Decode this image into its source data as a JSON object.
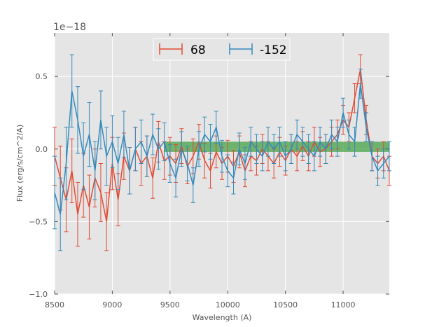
{
  "chart_data": {
    "type": "line",
    "title": "",
    "xlabel": "Wavelength (A)",
    "ylabel": "Flux (erg/s/cm^2/A)",
    "offset_label": "1e−18",
    "scale": 1e-18,
    "xlim": [
      8500,
      11400
    ],
    "ylim": [
      -1.0,
      0.8
    ],
    "grid": true,
    "legend_position": "top-center",
    "xticks": [
      8500,
      9000,
      9500,
      10000,
      10500,
      11000
    ],
    "xtick_labels": [
      "8500",
      "9000",
      "9500",
      "10000",
      "10500",
      "11000"
    ],
    "yticks": [
      -1.0,
      -0.5,
      0.0,
      0.5
    ],
    "ytick_labels": [
      "−1.0",
      "−0.5",
      "0.0",
      "0.5"
    ],
    "band": {
      "x0": 9450,
      "x1": 11400,
      "y0": -0.02,
      "y1": 0.05,
      "color": "#3a9e3a"
    },
    "series": [
      {
        "name": "68",
        "color": "#e24a33",
        "x": [
          8500,
          8550,
          8600,
          8650,
          8700,
          8750,
          8800,
          8850,
          8900,
          8950,
          9000,
          9050,
          9100,
          9150,
          9200,
          9250,
          9300,
          9350,
          9400,
          9450,
          9500,
          9550,
          9600,
          9650,
          9700,
          9750,
          9800,
          9850,
          9900,
          9950,
          10000,
          10050,
          10100,
          10150,
          10200,
          10250,
          10300,
          10350,
          10400,
          10450,
          10500,
          10550,
          10600,
          10650,
          10700,
          10750,
          10800,
          10850,
          10900,
          10950,
          11000,
          11050,
          11100,
          11150,
          11200,
          11250,
          11300,
          11350,
          11400
        ],
        "y": [
          -0.05,
          -0.2,
          -0.35,
          -0.15,
          -0.45,
          -0.25,
          -0.4,
          -0.2,
          -0.3,
          -0.5,
          -0.1,
          -0.35,
          -0.05,
          -0.15,
          0.0,
          -0.1,
          -0.05,
          -0.2,
          0.05,
          -0.08,
          -0.05,
          -0.1,
          0.02,
          -0.12,
          -0.05,
          0.05,
          -0.08,
          -0.15,
          -0.02,
          -0.1,
          -0.05,
          -0.12,
          -0.02,
          -0.15,
          -0.05,
          -0.08,
          0.0,
          -0.05,
          -0.1,
          -0.02,
          -0.08,
          0.0,
          -0.05,
          0.02,
          -0.05,
          0.05,
          -0.02,
          0.0,
          0.05,
          0.1,
          0.2,
          0.15,
          0.35,
          0.55,
          0.2,
          -0.05,
          -0.1,
          -0.05,
          -0.15
        ],
        "yerr": [
          0.2,
          0.22,
          0.22,
          0.22,
          0.22,
          0.22,
          0.22,
          0.2,
          0.2,
          0.2,
          0.18,
          0.18,
          0.16,
          0.16,
          0.15,
          0.15,
          0.14,
          0.14,
          0.14,
          0.13,
          0.13,
          0.13,
          0.12,
          0.12,
          0.12,
          0.12,
          0.12,
          0.12,
          0.11,
          0.11,
          0.11,
          0.11,
          0.11,
          0.11,
          0.1,
          0.1,
          0.1,
          0.1,
          0.1,
          0.1,
          0.1,
          0.1,
          0.1,
          0.1,
          0.1,
          0.1,
          0.1,
          0.1,
          0.1,
          0.1,
          0.1,
          0.1,
          0.1,
          0.1,
          0.1,
          0.1,
          0.1,
          0.1,
          0.1
        ]
      },
      {
        "name": "-152",
        "color": "#348abd",
        "x": [
          8500,
          8550,
          8600,
          8650,
          8700,
          8750,
          8800,
          8850,
          8900,
          8950,
          9000,
          9050,
          9100,
          9150,
          9200,
          9250,
          9300,
          9350,
          9400,
          9450,
          9500,
          9550,
          9600,
          9650,
          9700,
          9750,
          9800,
          9850,
          9900,
          9950,
          10000,
          10050,
          10100,
          10150,
          10200,
          10250,
          10300,
          10350,
          10400,
          10450,
          10500,
          10550,
          10600,
          10650,
          10700,
          10750,
          10800,
          10850,
          10900,
          10950,
          11000,
          11050,
          11100,
          11150,
          11200,
          11250,
          11300,
          11350,
          11400
        ],
        "y": [
          -0.3,
          -0.45,
          -0.1,
          0.4,
          0.2,
          -0.05,
          0.1,
          -0.15,
          0.2,
          -0.05,
          0.05,
          -0.1,
          0.1,
          -0.15,
          0.0,
          0.05,
          -0.05,
          0.1,
          0.0,
          0.05,
          -0.1,
          -0.2,
          0.0,
          -0.1,
          -0.25,
          0.0,
          0.1,
          0.05,
          0.15,
          -0.05,
          -0.15,
          -0.2,
          0.0,
          -0.1,
          0.05,
          0.0,
          -0.05,
          0.05,
          0.0,
          0.05,
          -0.05,
          0.0,
          0.1,
          0.05,
          0.0,
          -0.05,
          0.05,
          0.0,
          0.1,
          0.05,
          0.25,
          0.1,
          0.05,
          0.45,
          0.15,
          -0.05,
          -0.15,
          -0.1,
          -0.05
        ],
        "yerr": [
          0.25,
          0.25,
          0.25,
          0.25,
          0.23,
          0.23,
          0.22,
          0.2,
          0.2,
          0.2,
          0.18,
          0.18,
          0.16,
          0.16,
          0.15,
          0.15,
          0.14,
          0.14,
          0.14,
          0.13,
          0.13,
          0.13,
          0.12,
          0.12,
          0.12,
          0.12,
          0.12,
          0.12,
          0.11,
          0.11,
          0.11,
          0.11,
          0.11,
          0.11,
          0.1,
          0.1,
          0.1,
          0.1,
          0.1,
          0.1,
          0.1,
          0.1,
          0.1,
          0.1,
          0.1,
          0.1,
          0.1,
          0.1,
          0.1,
          0.1,
          0.1,
          0.1,
          0.1,
          0.1,
          0.1,
          0.1,
          0.1,
          0.1,
          0.1
        ]
      }
    ]
  }
}
